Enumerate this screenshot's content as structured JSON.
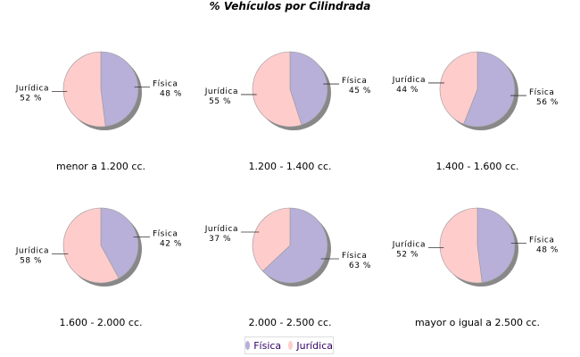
{
  "chart_data": {
    "type": "pie",
    "title": "% Vehículos por Cilindrada",
    "series_names": [
      "Física",
      "Jurídica"
    ],
    "colors": {
      "Física": "#b8b0d8",
      "Jurídica": "#ffcccc"
    },
    "legend_position": "bottom",
    "pies": [
      {
        "label": "menor a 1.200 cc.",
        "values": [
          48,
          52
        ],
        "value_labels": [
          "48 %",
          "52 %"
        ]
      },
      {
        "label": "1.200 - 1.400 cc.",
        "values": [
          45,
          55
        ],
        "value_labels": [
          "45 %",
          "55 %"
        ]
      },
      {
        "label": "1.400 - 1.600 cc.",
        "values": [
          56,
          44
        ],
        "value_labels": [
          "56 %",
          "44 %"
        ]
      },
      {
        "label": "1.600 - 2.000 cc.",
        "values": [
          42,
          58
        ],
        "value_labels": [
          "42 %",
          "58 %"
        ]
      },
      {
        "label": "2.000 - 2.500 cc.",
        "values": [
          63,
          37
        ],
        "value_labels": [
          "63 %",
          "37 %"
        ]
      },
      {
        "label": "mayor o igual a 2.500 cc.",
        "values": [
          48,
          52
        ],
        "value_labels": [
          "48 %",
          "52 %"
        ]
      }
    ]
  }
}
